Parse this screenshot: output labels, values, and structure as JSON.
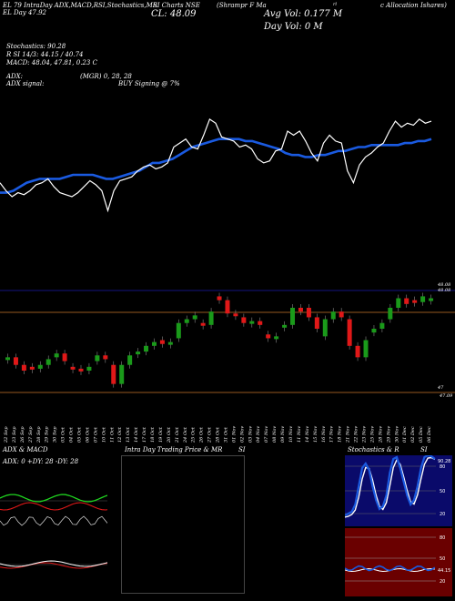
{
  "header": {
    "line1_left": "EL 79 IntraDay ADX,MACD,R",
    "line1_mid": "SI,Stochastics,MR",
    "line1_mid2": "SI Charts NSE",
    "line1_right": "(Shrampr F Ma",
    "line1_far": "rl",
    "line1_end": "c Allocation Ishares)",
    "line2_left": "EL  Day 47.92",
    "close_label": "CL: 48.09",
    "avg_vol": "Avg Vol: 0.177 M",
    "day_vol": "Day Vol: 0   M",
    "stochastics": "Stochastics: 90.28",
    "rsi": "R        SI 14/3: 44.15 / 40.74",
    "macd": "MACD: 48.04, 47.81, 0.23 C",
    "adx": "ADX:",
    "adx_mid": "(MGR) 0, 28, 28",
    "adx_signal": "ADX  signal:",
    "buy_signal": "BUY Signing @ 7%"
  },
  "price_axis": {
    "upper": "48.08",
    "upper2": "48.08",
    "lower": "47",
    "lower2": "47.09"
  },
  "dates": [
    "22 Sep",
    "23 Sep",
    "26 Sep",
    "27 Sep",
    "28 Sep",
    "29 Sep",
    "30 Sep",
    "03 Oct",
    "04 Oct",
    "05 Oct",
    "06 Oct",
    "07 Oct",
    "10 Oct",
    "11 Oct",
    "12 Oct",
    "13 Oct",
    "14 Oct",
    "17 Oct",
    "18 Oct",
    "19 Oct",
    "20 Oct",
    "21 Oct",
    "24 Oct",
    "25 Oct",
    "26 Oct",
    "27 Oct",
    "28 Oct",
    "31 Oct",
    "01 Nov",
    "02 Nov",
    "03 Nov",
    "04 Nov",
    "07 Nov",
    "08 Nov",
    "09 Nov",
    "10 Nov",
    "11 Nov",
    "14 Nov",
    "15 Nov",
    "16 Nov",
    "17 Nov",
    "18 Nov",
    "21 Nov",
    "22 Nov",
    "23 Nov",
    "25 Nov",
    "28 Nov",
    "29 Nov",
    "30 Nov",
    "01 Dec",
    "02 Dec",
    "05 Dec",
    "06 Dec"
  ],
  "panels": {
    "adx_title": "ADX  & MACD",
    "adx_readout": "ADX: 0   +DY: 28  -DY: 28",
    "intraday_title": "Intra  Day Trading Price  & MR",
    "intraday_si": "SI",
    "stoch_title": "Stochastics & R",
    "stoch_si": "SI",
    "stoch_ticks": [
      "80",
      "50",
      "20"
    ],
    "rsi_ticks": [
      "80",
      "50",
      "20"
    ],
    "stoch_val": "90.28",
    "rsi_val": "44.15"
  },
  "colors": {
    "up": "#1a9a1a",
    "down": "#e01818",
    "ma": "#1a5ae0",
    "price_line": "#ffffff",
    "orange_line": "#c8742a",
    "blue_line": "#2a2aff"
  },
  "chart_data": {
    "type": "line",
    "price": [
      47.78,
      47.74,
      47.71,
      47.73,
      47.72,
      47.74,
      47.77,
      47.78,
      47.8,
      47.76,
      47.73,
      47.72,
      47.71,
      47.73,
      47.76,
      47.79,
      47.77,
      47.74,
      47.64,
      47.74,
      47.79,
      47.8,
      47.81,
      47.84,
      47.86,
      47.87,
      47.85,
      47.86,
      47.88,
      47.96,
      47.98,
      48.0,
      47.96,
      47.95,
      48.02,
      48.1,
      48.08,
      48.01,
      48.0,
      47.99,
      47.96,
      47.97,
      47.95,
      47.9,
      47.88,
      47.89,
      47.94,
      47.95,
      48.04,
      48.02,
      48.04,
      47.99,
      47.93,
      47.89,
      47.98,
      48.02,
      47.99,
      47.98,
      47.84,
      47.78,
      47.87,
      47.91,
      47.93,
      47.96,
      47.98,
      48.04,
      48.09,
      48.06,
      48.08,
      48.07,
      48.1,
      48.08,
      48.09
    ],
    "ma": [
      47.73,
      47.73,
      47.74,
      47.76,
      47.78,
      47.79,
      47.8,
      47.8,
      47.8,
      47.8,
      47.81,
      47.82,
      47.82,
      47.82,
      47.82,
      47.81,
      47.8,
      47.8,
      47.81,
      47.82,
      47.83,
      47.84,
      47.86,
      47.88,
      47.88,
      47.89,
      47.9,
      47.92,
      47.94,
      47.96,
      47.97,
      47.98,
      47.99,
      48.0,
      48.0,
      48.0,
      48.0,
      47.99,
      47.99,
      47.98,
      47.97,
      47.96,
      47.95,
      47.93,
      47.92,
      47.92,
      47.91,
      47.91,
      47.92,
      47.92,
      47.93,
      47.94,
      47.94,
      47.95,
      47.96,
      47.96,
      47.97,
      47.97,
      47.97,
      47.97,
      47.97,
      47.98,
      47.98,
      47.99,
      47.99,
      48.0
    ]
  }
}
